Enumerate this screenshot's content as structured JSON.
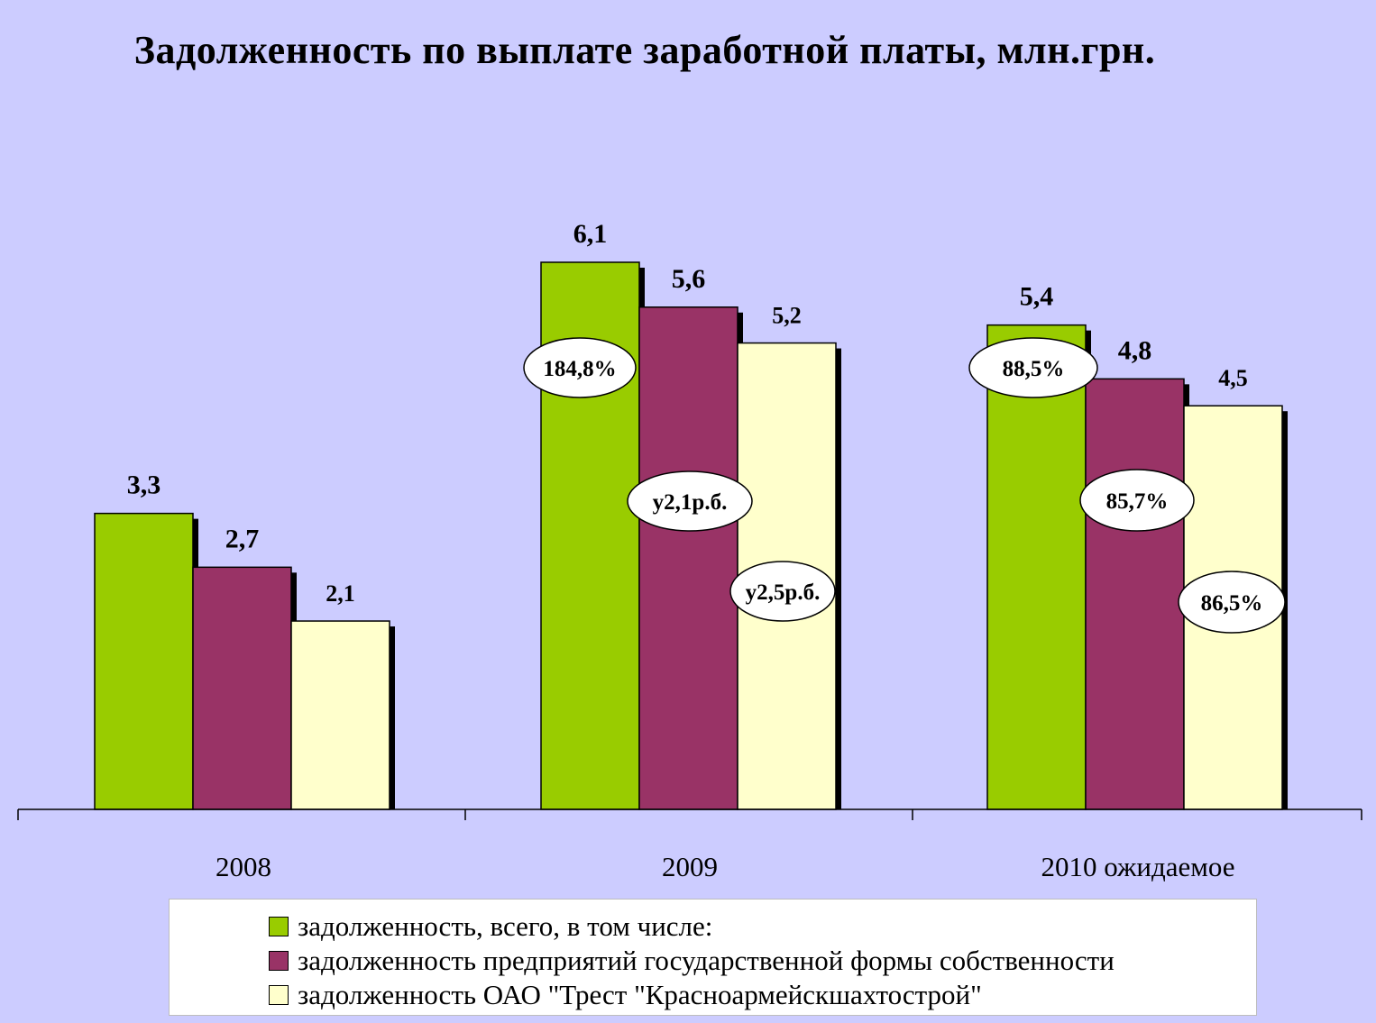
{
  "chart_data": {
    "type": "bar",
    "title": "Задолженность по выплате заработной платы, млн.грн.",
    "categories": [
      "2008",
      "2009",
      "2010 ожидаемое"
    ],
    "series": [
      {
        "name": "задолженность, всего,  в  том  числе:",
        "color": "#99cc00",
        "values": [
          3.3,
          6.1,
          5.4
        ],
        "labels": [
          "3,3",
          "6,1",
          "5,4"
        ]
      },
      {
        "name": "задолженность предприятий государственной формы собственности",
        "color": "#993366",
        "values": [
          2.7,
          5.6,
          4.8
        ],
        "labels": [
          "2,7",
          "5,6",
          "4,8"
        ]
      },
      {
        "name": "задолженность ОАО \"Трест \"Красноармейскшахтострой\"",
        "color": "#ffffcc",
        "values": [
          2.1,
          5.2,
          4.5
        ],
        "labels": [
          "2,1",
          "5,2",
          "4,5"
        ]
      }
    ],
    "annotations": [
      {
        "category": "2009",
        "series_index": 0,
        "text": "184,8%"
      },
      {
        "category": "2009",
        "series_index": 1,
        "text": "у2,1р.б."
      },
      {
        "category": "2009",
        "series_index": 2,
        "text": "у2,5р.б."
      },
      {
        "category": "2010 ожидаемое",
        "series_index": 0,
        "text": "88,5%"
      },
      {
        "category": "2010 ожидаемое",
        "series_index": 1,
        "text": "85,7%"
      },
      {
        "category": "2010 ожидаемое",
        "series_index": 2,
        "text": "86,5%"
      }
    ],
    "xlabel": "",
    "ylabel": "",
    "ylim": [
      0,
      6.9
    ],
    "grid": false,
    "legend_position": "bottom"
  }
}
